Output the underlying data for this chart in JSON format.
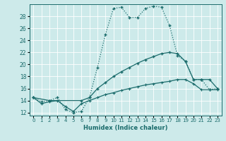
{
  "xlabel": "Humidex (Indice chaleur)",
  "bg_color": "#cdeaea",
  "line_color": "#1a6b6b",
  "xlim": [
    -0.5,
    23.5
  ],
  "ylim": [
    11.5,
    30.0
  ],
  "yticks": [
    12,
    14,
    16,
    18,
    20,
    22,
    24,
    26,
    28
  ],
  "xticks": [
    0,
    1,
    2,
    3,
    4,
    5,
    6,
    7,
    8,
    9,
    10,
    11,
    12,
    13,
    14,
    15,
    16,
    17,
    18,
    19,
    20,
    21,
    22,
    23
  ],
  "curve1_x": [
    0,
    1,
    2,
    3,
    4,
    5,
    6,
    7,
    8,
    9,
    10,
    11,
    12,
    13,
    14,
    15,
    16,
    17,
    18,
    19,
    20,
    21,
    22,
    23
  ],
  "curve1_y": [
    14.5,
    13.8,
    14.0,
    14.5,
    12.5,
    12.0,
    12.2,
    14.5,
    19.5,
    25.0,
    29.3,
    29.5,
    27.8,
    27.8,
    29.3,
    29.7,
    29.5,
    26.5,
    21.5,
    20.5,
    17.5,
    17.5,
    15.8,
    16.0
  ],
  "curve2_x": [
    0,
    2,
    6,
    7,
    8,
    9,
    10,
    11,
    12,
    13,
    14,
    15,
    16,
    17,
    18,
    19,
    20,
    21,
    22,
    23
  ],
  "curve2_y": [
    14.5,
    14.0,
    14.0,
    14.5,
    16.0,
    17.0,
    18.0,
    18.8,
    19.5,
    20.2,
    20.8,
    21.3,
    21.8,
    22.0,
    21.8,
    20.5,
    17.5,
    17.5,
    17.5,
    16.0
  ],
  "curve3_x": [
    0,
    1,
    2,
    3,
    4,
    5,
    6,
    7,
    8,
    9,
    10,
    11,
    12,
    13,
    14,
    15,
    16,
    17,
    18,
    19,
    20,
    21,
    22,
    23
  ],
  "curve3_y": [
    14.5,
    13.5,
    13.8,
    14.0,
    13.0,
    12.2,
    13.5,
    14.0,
    14.5,
    15.0,
    15.3,
    15.7,
    16.0,
    16.3,
    16.6,
    16.8,
    17.0,
    17.2,
    17.5,
    17.5,
    16.8,
    15.8,
    15.8,
    15.8
  ]
}
